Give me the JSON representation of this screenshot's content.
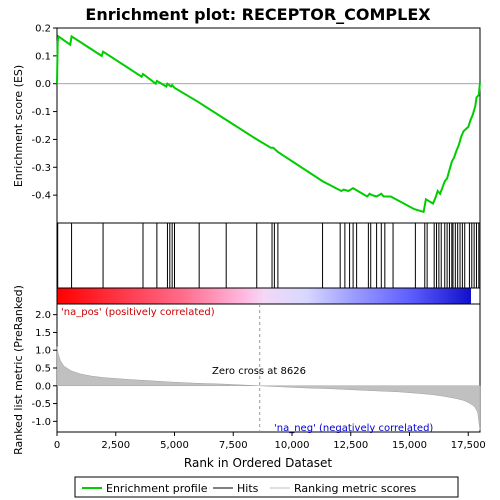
{
  "chart_data": {
    "type": "line",
    "title": "Enrichment plot: RECEPTOR_COMPLEX",
    "es_panel": {
      "ylabel": "Enrichment score (ES)",
      "ylim": [
        -0.5,
        0.2
      ],
      "yticks": [
        0.2,
        0.1,
        0.0,
        -0.1,
        -0.2,
        -0.3,
        -0.4
      ],
      "ytick_labels": [
        "0.2",
        "0.1",
        "0.0",
        "-0.1",
        "-0.2",
        "-0.3",
        "-0.4"
      ],
      "line_color": "#00cc00",
      "series": [
        {
          "name": "Enrichment profile",
          "x": [
            0,
            30,
            60,
            560,
            620,
            1900,
            1960,
            3600,
            3660,
            4200,
            4250,
            4650,
            4700,
            4850,
            4900,
            5000,
            6000,
            7200,
            8500,
            9100,
            9200,
            9400,
            11300,
            12100,
            12200,
            12400,
            12600,
            12700,
            13200,
            13300,
            13400,
            13600,
            13800,
            13900,
            14200,
            15200,
            15600,
            15700,
            16000,
            16100,
            16200,
            16300,
            16500,
            16600,
            16700,
            16800,
            16900,
            17000,
            17100,
            17200,
            17300,
            17500,
            17600,
            17700,
            17800,
            17850,
            17950,
            18000
          ],
          "y": [
            0.0,
            0.15,
            0.17,
            0.14,
            0.17,
            0.1,
            0.115,
            0.025,
            0.035,
            0.0,
            0.01,
            -0.01,
            0.0,
            -0.01,
            -0.005,
            -0.015,
            -0.065,
            -0.13,
            -0.2,
            -0.23,
            -0.23,
            -0.245,
            -0.35,
            -0.385,
            -0.38,
            -0.385,
            -0.375,
            -0.38,
            -0.405,
            -0.395,
            -0.4,
            -0.405,
            -0.395,
            -0.405,
            -0.405,
            -0.45,
            -0.46,
            -0.415,
            -0.43,
            -0.41,
            -0.385,
            -0.395,
            -0.35,
            -0.34,
            -0.31,
            -0.28,
            -0.265,
            -0.24,
            -0.22,
            -0.19,
            -0.17,
            -0.155,
            -0.13,
            -0.11,
            -0.08,
            -0.05,
            -0.04,
            0.005
          ]
        }
      ]
    },
    "hits": {
      "name": "Hits",
      "positions": [
        30,
        620,
        1960,
        3660,
        4250,
        4700,
        4800,
        4900,
        5000,
        6050,
        7200,
        8500,
        9150,
        9250,
        9400,
        11300,
        12050,
        12250,
        12450,
        12600,
        12750,
        13250,
        13350,
        13600,
        13800,
        13950,
        14300,
        15250,
        15650,
        15750,
        16050,
        16150,
        16250,
        16350,
        16500,
        16600,
        16700,
        16800,
        16850,
        16950,
        17050,
        17150,
        17250,
        17350,
        17550,
        17650,
        17750,
        17850,
        17950
      ]
    },
    "metric_panel": {
      "ylabel": "Ranked list metric (PreRanked)",
      "ylim": [
        -1.3,
        2.3
      ],
      "yticks": [
        2.0,
        1.5,
        1.0,
        0.5,
        0.0,
        -0.5,
        -1.0
      ],
      "ytick_labels": [
        "2.0",
        "1.5",
        "1.0",
        "0.5",
        "0.0",
        "-0.5",
        "-1.0"
      ],
      "series_name": "Ranking metric scores",
      "fill_color": "#c0c0c0",
      "x": [
        0,
        50,
        150,
        300,
        600,
        1000,
        1500,
        2000,
        3000,
        4000,
        5000,
        6000,
        7000,
        8000,
        8626,
        9500,
        10500,
        11500,
        12500,
        13500,
        14500,
        15500,
        16000,
        16500,
        17000,
        17300,
        17500,
        17700,
        17800,
        17900,
        17950,
        18000
      ],
      "y": [
        1.1,
        0.9,
        0.7,
        0.55,
        0.42,
        0.33,
        0.27,
        0.23,
        0.18,
        0.14,
        0.1,
        0.07,
        0.05,
        0.02,
        0.0,
        -0.03,
        -0.06,
        -0.08,
        -0.11,
        -0.14,
        -0.17,
        -0.22,
        -0.25,
        -0.3,
        -0.36,
        -0.41,
        -0.47,
        -0.55,
        -0.62,
        -0.75,
        -1.0,
        -1.25
      ]
    },
    "zero_cross_label": "Zero cross at 8626",
    "zero_cross_rank": 8626,
    "na_pos_label": "'na_pos' (positively correlated)",
    "na_neg_label": "'na_neg' (negatively correlated)",
    "xlabel": "Rank in Ordered Dataset",
    "xlim": [
      0,
      18000
    ],
    "xticks": [
      0,
      2500,
      5000,
      7500,
      10000,
      12500,
      15000,
      17500
    ],
    "xtick_labels": [
      "0",
      "2,500",
      "5,000",
      "7,500",
      "10,000",
      "12,500",
      "15,000",
      "17,500"
    ],
    "legend": {
      "placement": "bottom",
      "entries": [
        {
          "label": "Enrichment profile",
          "color": "#00cc00"
        },
        {
          "label": "Hits",
          "color": "#000000"
        },
        {
          "label": "Ranking metric scores",
          "color": "#c0c0c0"
        }
      ]
    }
  }
}
